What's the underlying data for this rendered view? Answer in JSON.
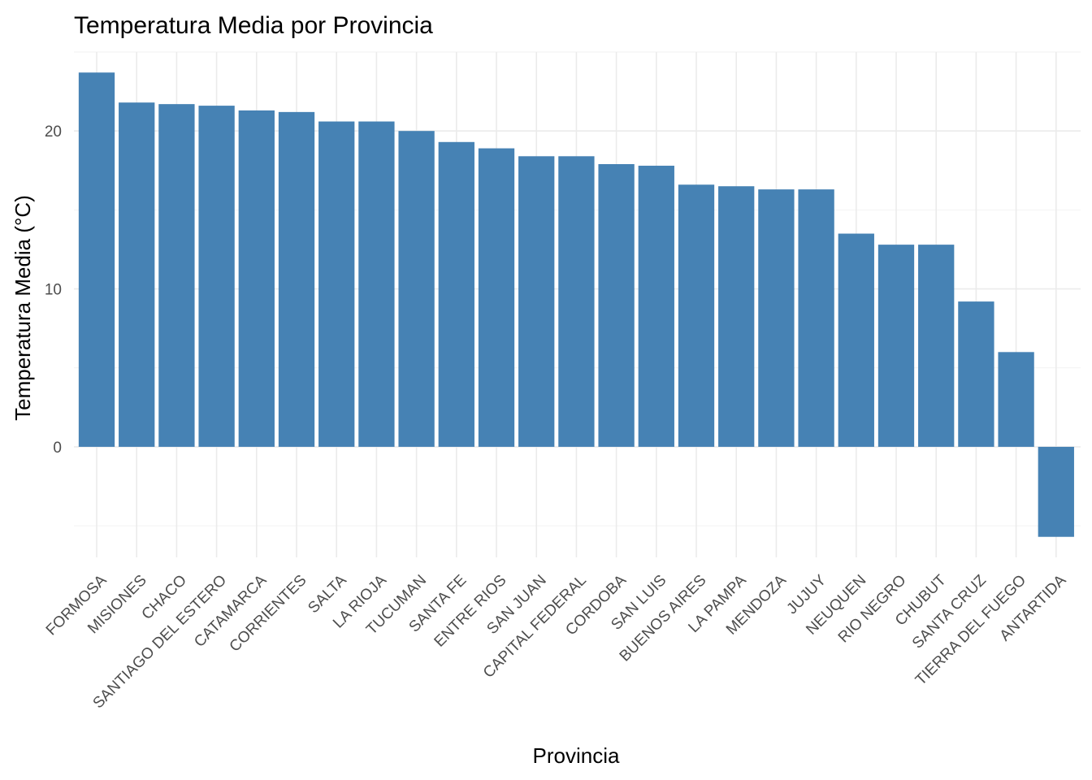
{
  "chart_data": {
    "type": "bar",
    "title": "Temperatura Media por Provincia",
    "xlabel": "Provincia",
    "ylabel": "Temperatura Media (°C)",
    "categories": [
      "FORMOSA",
      "MISIONES",
      "CHACO",
      "SANTIAGO DEL ESTERO",
      "CATAMARCA",
      "CORRIENTES",
      "SALTA",
      "LA RIOJA",
      "TUCUMAN",
      "SANTA FE",
      "ENTRE RIOS",
      "SAN JUAN",
      "CAPITAL FEDERAL",
      "CORDOBA",
      "SAN LUIS",
      "BUENOS AIRES",
      "LA PAMPA",
      "MENDOZA",
      "JUJUY",
      "NEUQUEN",
      "RIO NEGRO",
      "CHUBUT",
      "SANTA CRUZ",
      "TIERRA DEL FUEGO",
      "ANTARTIDA"
    ],
    "values": [
      23.7,
      21.8,
      21.7,
      21.6,
      21.3,
      21.2,
      20.6,
      20.6,
      20.0,
      19.3,
      18.9,
      18.4,
      18.4,
      17.9,
      17.8,
      16.6,
      16.5,
      16.3,
      16.3,
      13.5,
      12.8,
      12.8,
      9.2,
      6.0,
      -5.7
    ],
    "ylim": [
      -7.0,
      25.0
    ],
    "yticks": [
      0,
      10,
      20
    ],
    "ytick_labels": [
      "0",
      "10",
      "20"
    ],
    "grid": true,
    "bar_color": "#4682b4"
  }
}
